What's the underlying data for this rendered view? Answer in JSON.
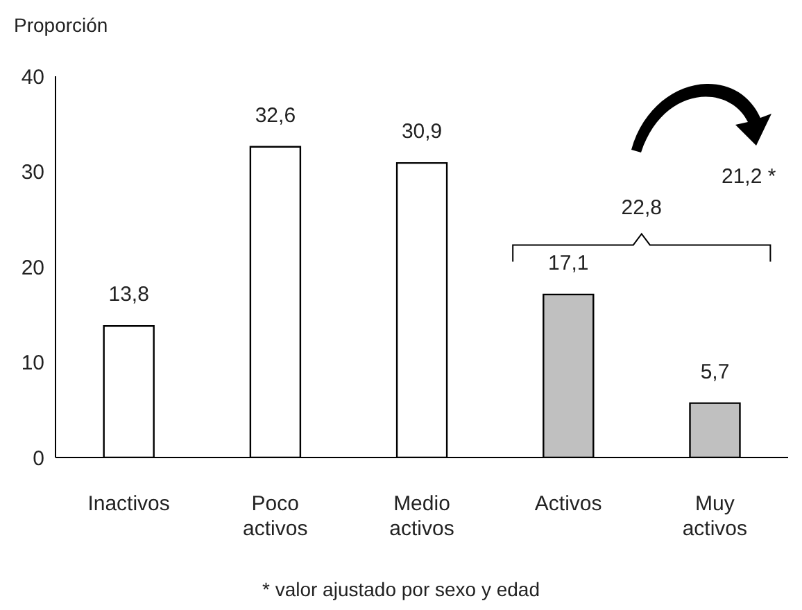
{
  "chart_data": {
    "type": "bar",
    "ylabel": "Proporción",
    "categories": [
      "Inactivos",
      "Poco activos",
      "Medio activos",
      "Activos",
      "Muy activos"
    ],
    "values": [
      13.8,
      32.6,
      30.9,
      17.1,
      5.7
    ],
    "colors": [
      "#ffffff",
      "#ffffff",
      "#ffffff",
      "#c0c0c0",
      "#c0c0c0"
    ],
    "value_labels": [
      "13,8",
      "32,6",
      "30,9",
      "17,1",
      "5,7"
    ],
    "ylim": [
      0,
      40
    ],
    "yticks": [
      0,
      10,
      20,
      30,
      40
    ],
    "annotations": [
      "22,8",
      "21,2 *",
      "* valor ajustado por sexo y edad"
    ]
  }
}
